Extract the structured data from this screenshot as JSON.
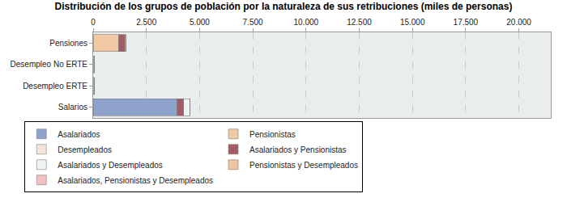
{
  "chart_data": {
    "type": "bar",
    "title": "Distribución de los grupos de población por la naturaleza de sus retribuciones (miles de personas)",
    "orientation": "horizontal",
    "stacked": true,
    "grid": true,
    "legend": "bottom",
    "categories": [
      "Salarios",
      "Desempleo ERTE",
      "Desempleo No ERTE",
      "Pensiones"
    ],
    "xlim": [
      0,
      21500
    ],
    "xticks": [
      0,
      {
        "value": 2500,
        "label": "2.500"
      },
      {
        "value": 5000,
        "label": "5.000"
      },
      {
        "value": 7500,
        "label": "7.500"
      },
      {
        "value": 10000,
        "label": "10.000"
      },
      {
        "value": 12500,
        "label": "12.500"
      },
      {
        "value": 15000,
        "label": "15.000"
      },
      {
        "value": 17500,
        "label": "17.500"
      },
      {
        "value": 20000,
        "label": "20.000"
      }
    ],
    "series": [
      {
        "name": "Asalariados",
        "color": "#8ea2cc",
        "values": [
          3950,
          0,
          0,
          0
        ]
      },
      {
        "name": "Pensionistas",
        "color": "#f0c8a4",
        "values": [
          0,
          0,
          0,
          1200
        ]
      },
      {
        "name": "Desempleados",
        "color": "#f4e4da",
        "values": [
          0,
          0,
          60,
          0
        ]
      },
      {
        "name": "Asalariados y Pensionistas",
        "color": "#a65a68",
        "values": [
          300,
          0,
          0,
          300
        ]
      },
      {
        "name": "Asalariados y Desempleados",
        "color": "#eef3f3",
        "values": [
          300,
          50,
          0,
          0
        ]
      },
      {
        "name": "Pensionistas y Desempleados",
        "color": "#eec5a0",
        "values": [
          0,
          0,
          0,
          40
        ]
      },
      {
        "name": "Asalariados, Pensionistas y Desempleados",
        "color": "#f2c0c0",
        "values": [
          10,
          0,
          0,
          10
        ]
      }
    ]
  }
}
